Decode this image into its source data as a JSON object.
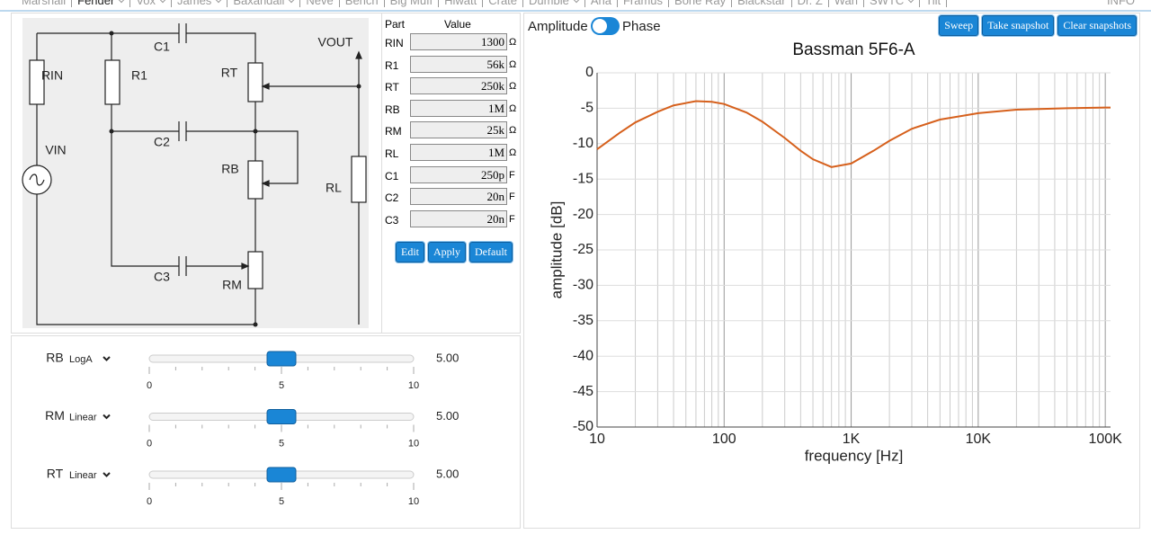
{
  "nav": [
    {
      "label": "Marshall",
      "dropdown": false
    },
    {
      "label": "Fender",
      "dropdown": true
    },
    {
      "label": "Vox",
      "dropdown": true
    },
    {
      "label": "James",
      "dropdown": true
    },
    {
      "label": "Baxandall",
      "dropdown": true
    },
    {
      "label": "Neve",
      "dropdown": false
    },
    {
      "label": "Bench",
      "dropdown": false
    },
    {
      "label": "Big Muff",
      "dropdown": false
    },
    {
      "label": "Hiwatt",
      "dropdown": false
    },
    {
      "label": "Crate",
      "dropdown": false
    },
    {
      "label": "Dumble",
      "dropdown": true
    },
    {
      "label": "Ana",
      "dropdown": false
    },
    {
      "label": "Framus",
      "dropdown": false
    },
    {
      "label": "Bone Ray",
      "dropdown": false
    },
    {
      "label": "Blackstar",
      "dropdown": false
    },
    {
      "label": "Dr. Z",
      "dropdown": false
    },
    {
      "label": "Wan",
      "dropdown": false
    },
    {
      "label": "SWTC",
      "dropdown": true
    },
    {
      "label": "Tilt",
      "dropdown": false
    }
  ],
  "info": "INFO",
  "schematic": {
    "labels": [
      "C1",
      "RIN",
      "R1",
      "RT",
      "VOUT",
      "C2",
      "VIN",
      "RB",
      "RL",
      "C3",
      "RM"
    ]
  },
  "parts": {
    "header": [
      "Part",
      "Value"
    ],
    "rows": [
      [
        "RIN",
        "1300",
        "Ω"
      ],
      [
        "R1",
        "56k",
        "Ω"
      ],
      [
        "RT",
        "250k",
        "Ω"
      ],
      [
        "RB",
        "1M",
        "Ω"
      ],
      [
        "RM",
        "25k",
        "Ω"
      ],
      [
        "RL",
        "1M",
        "Ω"
      ],
      [
        "C1",
        "250p",
        "F"
      ],
      [
        "C2",
        "20n",
        "F"
      ],
      [
        "C3",
        "20n",
        "F"
      ]
    ]
  },
  "buttons": [
    "Edit",
    "Apply",
    "Default"
  ],
  "sliders": [
    {
      "name": "RB",
      "taper": "LogA",
      "value": {
        "value": 5,
        "label": "5.00"
      },
      "range": [
        0,
        10
      ],
      "ticks": [
        0,
        5,
        10
      ]
    },
    {
      "name": "RM",
      "taper": "Linear",
      "value": {
        "value": 5,
        "label": "5.00"
      },
      "range": [
        0,
        10
      ],
      "ticks": [
        0,
        5,
        10
      ]
    },
    {
      "name": "RT",
      "taper": "Linear",
      "value": {
        "value": 5,
        "label": "5.00"
      },
      "range": [
        0,
        10
      ],
      "ticks": [
        0,
        5,
        10
      ]
    }
  ],
  "toggle": [
    "Amplitude",
    "Phase"
  ],
  "chart_buttons": [
    "Sweep",
    "Take snapshot",
    "Clear snapshots"
  ],
  "chart_data": {
    "type": "line",
    "title": "Bassman 5F6-A",
    "x_label": "frequency [Hz]",
    "y_label": "amplitude [dB]",
    "x_scale": "log",
    "grid": true,
    "x": [
      10,
      15,
      20,
      30,
      40,
      60,
      80,
      100,
      150,
      200,
      300,
      400,
      500,
      700,
      1000,
      1500,
      2000,
      3000,
      5000,
      10000,
      20000,
      50000,
      100000,
      110000
    ],
    "series": [
      {
        "name": "Bassman 5F6-A",
        "color": "#d6601c",
        "values": [
          -10.8,
          -8.5,
          -7.0,
          -5.5,
          -4.6,
          -4.0,
          -4.1,
          -4.4,
          -5.6,
          -6.9,
          -9.2,
          -11.0,
          -12.2,
          -13.3,
          -12.8,
          -11.0,
          -9.6,
          -7.9,
          -6.6,
          -5.7,
          -5.2,
          -5.0,
          -4.9,
          -4.9
        ]
      }
    ],
    "xlim": [
      10,
      110000
    ],
    "xticks": [
      10,
      100,
      {
        "value": 1000,
        "label": "1K"
      },
      {
        "value": 10000,
        "label": "10K"
      },
      {
        "value": 100000,
        "label": "100K"
      }
    ],
    "ylim": [
      -50,
      0
    ],
    "yticks": [
      0,
      -5,
      -10,
      -15,
      -20,
      -25,
      -30,
      -35,
      -40,
      -45,
      -50
    ]
  }
}
